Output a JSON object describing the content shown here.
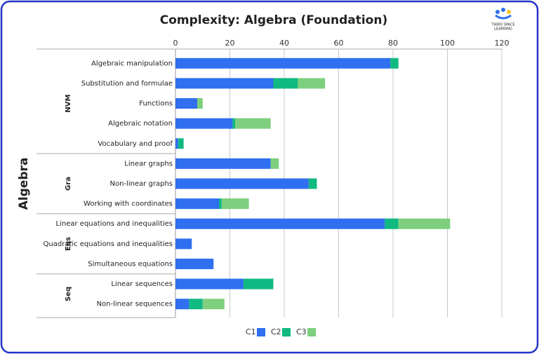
{
  "chart_data": {
    "type": "stacked-bar-horizontal",
    "title": "Complexity: Algebra (Foundation)",
    "y_label": "Algebra",
    "logo_text": [
      "THIRD SPACE",
      "LEARNING"
    ],
    "groups": [
      {
        "name": "NVM",
        "size": 5
      },
      {
        "name": "Gra",
        "size": 3
      },
      {
        "name": "Eqs",
        "size": 3
      },
      {
        "name": "Seq",
        "size": 2
      }
    ],
    "categories": [
      "Algebraic manipulation",
      "Substitution and formulae",
      "Functions",
      "Algebraic notation",
      "Vocabulary and proof",
      "Linear graphs",
      "Non-linear graphs",
      "Working with coordinates",
      "Linear equations and inequalities",
      "Quadratic equations and inequalities",
      "Simultaneous equations",
      "Linear sequences",
      "Non-linear sequences"
    ],
    "series": [
      {
        "name": "C1",
        "color": "#2f6ff0",
        "values": [
          79,
          36,
          8,
          21,
          1,
          35,
          49,
          16,
          77,
          6,
          14,
          25,
          5
        ]
      },
      {
        "name": "C2",
        "color": "#10b981",
        "values": [
          3,
          9,
          0,
          1,
          2,
          0,
          3,
          1,
          5,
          0,
          0,
          11,
          5
        ]
      },
      {
        "name": "C3",
        "color": "#7dcf7d",
        "values": [
          0,
          10,
          2,
          13,
          0,
          3,
          0,
          10,
          19,
          0,
          0,
          0,
          8
        ]
      }
    ],
    "xlim": [
      0,
      120
    ],
    "xticks": [
      0,
      20,
      40,
      60,
      80,
      100,
      120
    ],
    "grid": true,
    "legend": "bottom"
  }
}
